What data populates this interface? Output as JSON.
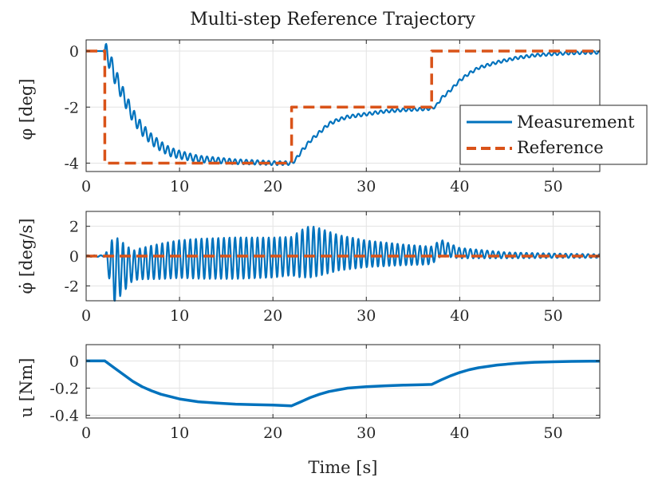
{
  "chart_data": {
    "type": "line",
    "title": "Multi-step Reference Trajectory",
    "xlabel": "Time [s]",
    "xlim": [
      0,
      55
    ],
    "xticks": [
      0,
      10,
      20,
      30,
      40,
      50
    ],
    "x_tick_labels": [
      "0",
      "10",
      "20",
      "30",
      "40",
      "50"
    ],
    "grid": true,
    "colors": {
      "measurement": "#0072BD",
      "reference": "#D95319"
    },
    "legend": {
      "location": "right of top panel",
      "entries": [
        "Measurement",
        "Reference"
      ]
    },
    "subplots": [
      {
        "id": "phi",
        "ylabel": "φ [deg]",
        "ylim": [
          -4.3,
          0.4
        ],
        "yticks": [
          0,
          -2,
          -4
        ],
        "y_tick_labels": [
          "0",
          "-2",
          "-4"
        ],
        "series": [
          {
            "name": "Measurement",
            "style": "solid",
            "x": [
              0,
              1,
              2,
              2.5,
              3,
              4,
              5,
              6,
              7,
              8,
              9,
              10,
              12,
              14,
              16,
              18,
              20,
              21,
              22,
              22.5,
              23,
              24,
              25,
              26,
              27,
              28,
              30,
              32,
              34,
              36,
              37,
              37.5,
              38,
              39,
              40,
              41,
              42,
              44,
              46,
              48,
              50,
              52,
              54,
              55
            ],
            "y": [
              0,
              0,
              0,
              -0.3,
              -0.8,
              -1.6,
              -2.3,
              -2.8,
              -3.15,
              -3.4,
              -3.6,
              -3.7,
              -3.85,
              -3.9,
              -3.95,
              -3.97,
              -4.0,
              -4.0,
              -4.0,
              -3.85,
              -3.6,
              -3.2,
              -2.9,
              -2.6,
              -2.45,
              -2.35,
              -2.25,
              -2.15,
              -2.1,
              -2.07,
              -2.05,
              -1.95,
              -1.7,
              -1.4,
              -1.05,
              -0.8,
              -0.6,
              -0.4,
              -0.25,
              -0.15,
              -0.1,
              -0.07,
              -0.05,
              -0.05
            ],
            "oscillation": {
              "amplitude": 0.3,
              "decay_time_s": 7.0,
              "period_s": 0.6,
              "start_s": 2
            }
          },
          {
            "name": "Reference",
            "style": "dashed",
            "x": [
              0,
              2,
              2,
              22,
              22,
              37,
              37,
              55
            ],
            "y": [
              0,
              0,
              -4,
              -4,
              -2,
              -2,
              0,
              0
            ]
          }
        ]
      },
      {
        "id": "phidot",
        "ylabel": "φ̇ [deg/s]",
        "ylim": [
          -3,
          3
        ],
        "yticks": [
          2,
          0,
          -2
        ],
        "y_tick_labels": [
          "2",
          "0",
          "-2"
        ],
        "series": [
          {
            "name": "Measurement",
            "style": "solid",
            "oscillation": {
              "period_s": 0.6,
              "start_s": 2
            },
            "envelope": {
              "t": [
                0,
                2,
                3,
                5,
                8,
                12,
                16,
                20,
                22,
                23,
                24,
                25,
                27,
                30,
                34,
                37,
                38,
                40,
                45,
                50,
                55
              ],
              "a": [
                0.05,
                0.05,
                2.3,
                1.0,
                1.2,
                1.35,
                1.4,
                1.35,
                1.3,
                1.6,
                1.75,
                1.6,
                1.2,
                0.9,
                0.7,
                0.6,
                0.55,
                0.35,
                0.2,
                0.15,
                0.12
              ]
            },
            "bias": {
              "t": [
                0,
                2,
                3,
                6,
                10,
                20,
                22,
                24,
                26,
                30,
                36,
                37,
                38,
                40,
                45,
                55
              ],
              "v": [
                0,
                0,
                -0.9,
                -0.5,
                -0.2,
                -0.1,
                0,
                0.3,
                0.25,
                0.15,
                0.05,
                0.05,
                0.55,
                0.2,
                0.05,
                0
              ]
            }
          },
          {
            "name": "Reference",
            "style": "dashed",
            "x": [
              0,
              55
            ],
            "y": [
              0,
              0
            ]
          }
        ]
      },
      {
        "id": "u",
        "ylabel": "u [Nm]",
        "ylim": [
          -0.42,
          0.12
        ],
        "yticks": [
          0,
          -0.2,
          -0.4
        ],
        "y_tick_labels": [
          "0",
          "-0.2",
          "-0.4"
        ],
        "series": [
          {
            "name": "Measurement",
            "style": "solid",
            "x": [
              0,
              2,
              3,
              4,
              5,
              6,
              7,
              8,
              10,
              12,
              14,
              16,
              18,
              20,
              22,
              23,
              24,
              25,
              26,
              28,
              30,
              32,
              34,
              36,
              37,
              38,
              39,
              40,
              41,
              42,
              44,
              46,
              48,
              50,
              52,
              54,
              55
            ],
            "y": [
              0,
              0,
              -0.05,
              -0.1,
              -0.15,
              -0.19,
              -0.22,
              -0.245,
              -0.28,
              -0.3,
              -0.31,
              -0.318,
              -0.322,
              -0.325,
              -0.33,
              -0.3,
              -0.27,
              -0.245,
              -0.225,
              -0.2,
              -0.19,
              -0.183,
              -0.178,
              -0.175,
              -0.173,
              -0.14,
              -0.11,
              -0.085,
              -0.065,
              -0.05,
              -0.03,
              -0.018,
              -0.01,
              -0.006,
              -0.003,
              -0.002,
              -0.002
            ]
          }
        ]
      }
    ]
  }
}
